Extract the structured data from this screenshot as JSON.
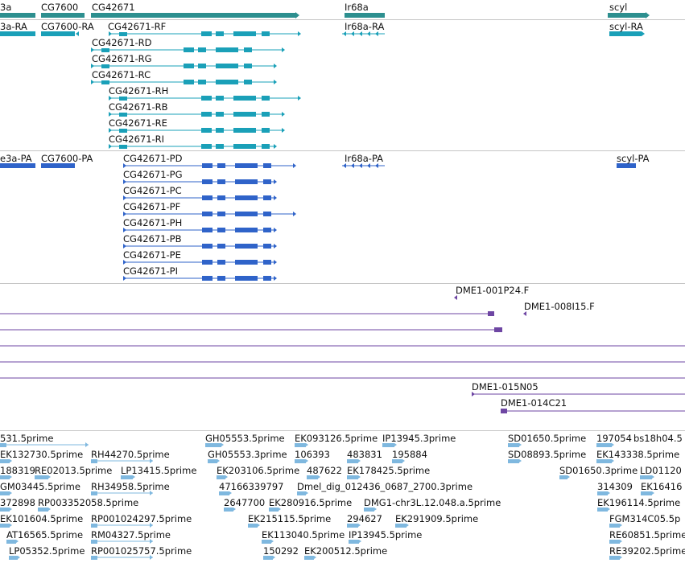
{
  "colors": {
    "gene": "#2d8f8f",
    "transcript": "#1aa0b8",
    "protein": "#2f63c9",
    "clone": "#6e46a3",
    "est": "#7fb8df",
    "separator": "#c5c5c5"
  },
  "genes": {
    "labels": [
      "3a",
      "CG7600",
      "CG42671",
      "Ir68a",
      "scyl"
    ]
  },
  "transcripts": {
    "labels": [
      "3a-RA",
      "CG7600-RA",
      "CG42671-RF",
      "CG42671-RD",
      "CG42671-RG",
      "CG42671-RC",
      "CG42671-RH",
      "CG42671-RB",
      "CG42671-RE",
      "CG42671-RI",
      "Ir68a-RA",
      "scyl-RA"
    ]
  },
  "proteins": {
    "labels": [
      "e3a-PA",
      "CG7600-PA",
      "CG42671-PD",
      "CG42671-PG",
      "CG42671-PC",
      "CG42671-PF",
      "CG42671-PH",
      "CG42671-PB",
      "CG42671-PE",
      "CG42671-PI",
      "Ir68a-PA",
      "scyl-PA"
    ]
  },
  "clones": {
    "labels": [
      "DME1-001P24.F",
      "DME1-008I15.F",
      "DME1-015N05",
      "DME1-014C21"
    ]
  },
  "ests": {
    "labels": [
      "531.5prime",
      "GH05553.5prime",
      "EK093126.5prime",
      "IP13945.3prime",
      "SD01650.5prime",
      "197054",
      "bs18h04.5",
      "EK132730.5prime",
      "RH44270.5prime",
      "GH05553.3prime",
      "106393",
      "483831",
      "195884",
      "SD08893.5prime",
      "EK143338.5prime",
      "188319",
      "RE02013.5prime",
      "LP13415.5prime",
      "EK203106.5prime",
      "487622",
      "EK178425.5prime",
      "SD01650.3prime",
      "LD01120",
      "GM03445.5prime",
      "RH34958.5prime",
      "47166339797",
      "Dmel_dig_012436_0687_2700.3prime",
      "314309",
      "EK16416",
      "372898",
      "RP003352058.5prime",
      "2647700",
      "EK280916.5prime",
      "DMG1-chr3L.12.048.a.5prime",
      "EK196114.5prime",
      "EK101604.5prime",
      "RP001024297.5prime",
      "EK215115.5prime",
      "294627",
      "EK291909.5prime",
      "FGM314C05.5p",
      "AT16565.5prime",
      "RM04327.5prime",
      "EK113040.5prime",
      "IP13945.5prime",
      "RE60851.5prime",
      "LP05352.5prime",
      "RP001025757.5prime",
      "150292",
      "EK200512.5prime",
      "RE39202.5prime"
    ]
  }
}
